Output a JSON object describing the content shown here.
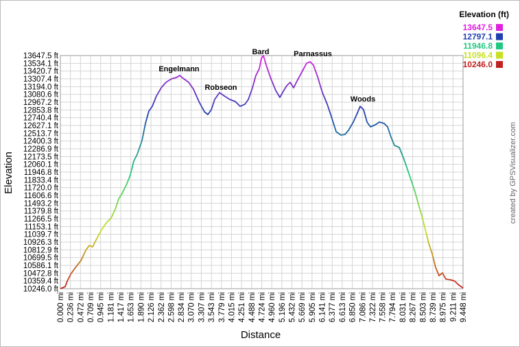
{
  "chart_data": {
    "type": "line",
    "x_label": "Distance",
    "y_label": "Elevation",
    "credit": "created by GPSVisualizer.com",
    "grid": true,
    "x": [
      0.0,
      0.113,
      0.161,
      0.241,
      0.354,
      0.483,
      0.596,
      0.676,
      0.756,
      0.837,
      0.966,
      1.078,
      1.191,
      1.288,
      1.368,
      1.449,
      1.561,
      1.642,
      1.722,
      1.803,
      1.915,
      1.996,
      2.076,
      2.157,
      2.253,
      2.366,
      2.479,
      2.607,
      2.72,
      2.801,
      2.897,
      3.01,
      3.122,
      3.251,
      3.38,
      3.46,
      3.541,
      3.621,
      3.734,
      3.847,
      3.975,
      4.104,
      4.217,
      4.33,
      4.41,
      4.507,
      4.587,
      4.668,
      4.716,
      4.764,
      4.829,
      4.941,
      5.054,
      5.15,
      5.231,
      5.311,
      5.392,
      5.472,
      5.553,
      5.666,
      5.778,
      5.859,
      5.939,
      6.036,
      6.148,
      6.261,
      6.358,
      6.47,
      6.583,
      6.679,
      6.76,
      6.873,
      6.953,
      7.034,
      7.114,
      7.195,
      7.275,
      7.388,
      7.484,
      7.597,
      7.677,
      7.758,
      7.838,
      7.951,
      8.048,
      8.16,
      8.241,
      8.321,
      8.402,
      8.482,
      8.563,
      8.643,
      8.724,
      8.804,
      8.885,
      8.965,
      9.045,
      9.158,
      9.255,
      9.335,
      9.448
    ],
    "values": [
      10246,
      10276,
      10356,
      10456,
      10556,
      10656,
      10806,
      10876,
      10856,
      10956,
      11106,
      11206,
      11276,
      11406,
      11557,
      11637,
      11777,
      11907,
      12107,
      12207,
      12407,
      12657,
      12837,
      12907,
      13057,
      13177,
      13257,
      13307,
      13327,
      13357,
      13307,
      13257,
      13157,
      12977,
      12827,
      12787,
      12857,
      13007,
      13107,
      13057,
      13007,
      12977,
      12907,
      12937,
      13007,
      13177,
      13357,
      13457,
      13607,
      13647,
      13507,
      13307,
      13137,
      13037,
      13127,
      13207,
      13257,
      13177,
      13277,
      13407,
      13537,
      13557,
      13507,
      13337,
      13107,
      12937,
      12757,
      12537,
      12487,
      12497,
      12557,
      12677,
      12787,
      12907,
      12857,
      12677,
      12607,
      12637,
      12677,
      12657,
      12607,
      12457,
      12337,
      12307,
      12157,
      11957,
      11807,
      11657,
      11477,
      11306,
      11106,
      10906,
      10756,
      10556,
      10436,
      10476,
      10386,
      10376,
      10356,
      10306,
      10256
    ],
    "xlim": [
      0,
      9.448
    ],
    "ylim": [
      10246,
      13647.5
    ],
    "xticks": [
      {
        "value": 0,
        "label": "0.000 mi"
      },
      {
        "value": 0.236,
        "label": "0.236 mi"
      },
      {
        "value": 0.472,
        "label": "0.472 mi"
      },
      {
        "value": 0.709,
        "label": "0.709 mi"
      },
      {
        "value": 0.945,
        "label": "0.945 mi"
      },
      {
        "value": 1.181,
        "label": "1.181 mi"
      },
      {
        "value": 1.417,
        "label": "1.417 mi"
      },
      {
        "value": 1.653,
        "label": "1.653 mi"
      },
      {
        "value": 1.89,
        "label": "1.890 mi"
      },
      {
        "value": 2.126,
        "label": "2.126 mi"
      },
      {
        "value": 2.362,
        "label": "2.362 mi"
      },
      {
        "value": 2.598,
        "label": "2.598 mi"
      },
      {
        "value": 2.834,
        "label": "2.834 mi"
      },
      {
        "value": 3.07,
        "label": "3.070 mi"
      },
      {
        "value": 3.307,
        "label": "3.307 mi"
      },
      {
        "value": 3.543,
        "label": "3.543 mi"
      },
      {
        "value": 3.779,
        "label": "3.779 mi"
      },
      {
        "value": 4.015,
        "label": "4.015 mi"
      },
      {
        "value": 4.251,
        "label": "4.251 mi"
      },
      {
        "value": 4.488,
        "label": "4.488 mi"
      },
      {
        "value": 4.724,
        "label": "4.724 mi"
      },
      {
        "value": 4.96,
        "label": "4.960 mi"
      },
      {
        "value": 5.196,
        "label": "5.196 mi"
      },
      {
        "value": 5.432,
        "label": "5.432 mi"
      },
      {
        "value": 5.669,
        "label": "5.669 mi"
      },
      {
        "value": 5.905,
        "label": "5.905 mi"
      },
      {
        "value": 6.141,
        "label": "6.141 mi"
      },
      {
        "value": 6.377,
        "label": "6.377 mi"
      },
      {
        "value": 6.613,
        "label": "6.613 mi"
      },
      {
        "value": 6.85,
        "label": "6.850 mi"
      },
      {
        "value": 7.086,
        "label": "7.086 mi"
      },
      {
        "value": 7.322,
        "label": "7.322 mi"
      },
      {
        "value": 7.558,
        "label": "7.558 mi"
      },
      {
        "value": 7.794,
        "label": "7.794 mi"
      },
      {
        "value": 8.031,
        "label": "8.031 mi"
      },
      {
        "value": 8.267,
        "label": "8.267 mi"
      },
      {
        "value": 8.503,
        "label": "8.503 mi"
      },
      {
        "value": 8.739,
        "label": "8.739 mi"
      },
      {
        "value": 8.975,
        "label": "8.975 mi"
      },
      {
        "value": 9.211,
        "label": "9.211 mi"
      },
      {
        "value": 9.448,
        "label": "9.448 mi"
      }
    ],
    "yticks": [
      {
        "value": 10246.0,
        "label": "10246.0 ft"
      },
      {
        "value": 10359.4,
        "label": "10359.4 ft"
      },
      {
        "value": 10472.8,
        "label": "10472.8 ft"
      },
      {
        "value": 10586.1,
        "label": "10586.1 ft"
      },
      {
        "value": 10699.5,
        "label": "10699.5 ft"
      },
      {
        "value": 10812.9,
        "label": "10812.9 ft"
      },
      {
        "value": 10926.3,
        "label": "10926.3 ft"
      },
      {
        "value": 11039.7,
        "label": "11039.7 ft"
      },
      {
        "value": 11153.1,
        "label": "11153.1 ft"
      },
      {
        "value": 11266.5,
        "label": "11266.5 ft"
      },
      {
        "value": 11379.8,
        "label": "11379.8 ft"
      },
      {
        "value": 11493.2,
        "label": "11493.2 ft"
      },
      {
        "value": 11606.6,
        "label": "11606.6 ft"
      },
      {
        "value": 11720.0,
        "label": "11720.0 ft"
      },
      {
        "value": 11833.4,
        "label": "11833.4 ft"
      },
      {
        "value": 11946.8,
        "label": "11946.8 ft"
      },
      {
        "value": 12060.1,
        "label": "12060.1 ft"
      },
      {
        "value": 12173.5,
        "label": "12173.5 ft"
      },
      {
        "value": 12286.9,
        "label": "12286.9 ft"
      },
      {
        "value": 12400.3,
        "label": "12400.3 ft"
      },
      {
        "value": 12513.7,
        "label": "12513.7 ft"
      },
      {
        "value": 12627.1,
        "label": "12627.1 ft"
      },
      {
        "value": 12740.4,
        "label": "12740.4 ft"
      },
      {
        "value": 12853.8,
        "label": "12853.8 ft"
      },
      {
        "value": 12967.2,
        "label": "12967.2 ft"
      },
      {
        "value": 13080.6,
        "label": "13080.6 ft"
      },
      {
        "value": 13194.0,
        "label": "13194.0 ft"
      },
      {
        "value": 13307.4,
        "label": "13307.4 ft"
      },
      {
        "value": 13420.7,
        "label": "13420.7 ft"
      },
      {
        "value": 13534.1,
        "label": "13534.1 ft"
      },
      {
        "value": 13647.5,
        "label": "13647.5 ft"
      }
    ],
    "legend": {
      "title": "Elevation (ft)",
      "items": [
        {
          "value": 13647.5,
          "color": "#e020e0"
        },
        {
          "value": 12797.1,
          "color": "#1f3fb0"
        },
        {
          "value": 11946.8,
          "color": "#20c880"
        },
        {
          "value": 11096.4,
          "color": "#c8e020"
        },
        {
          "value": 10246,
          "label": "10246.0",
          "color": "#c02020"
        }
      ]
    },
    "annotations": [
      "Engelmann",
      "Robseon",
      "Bard",
      "Parnassus",
      "Woods"
    ]
  }
}
